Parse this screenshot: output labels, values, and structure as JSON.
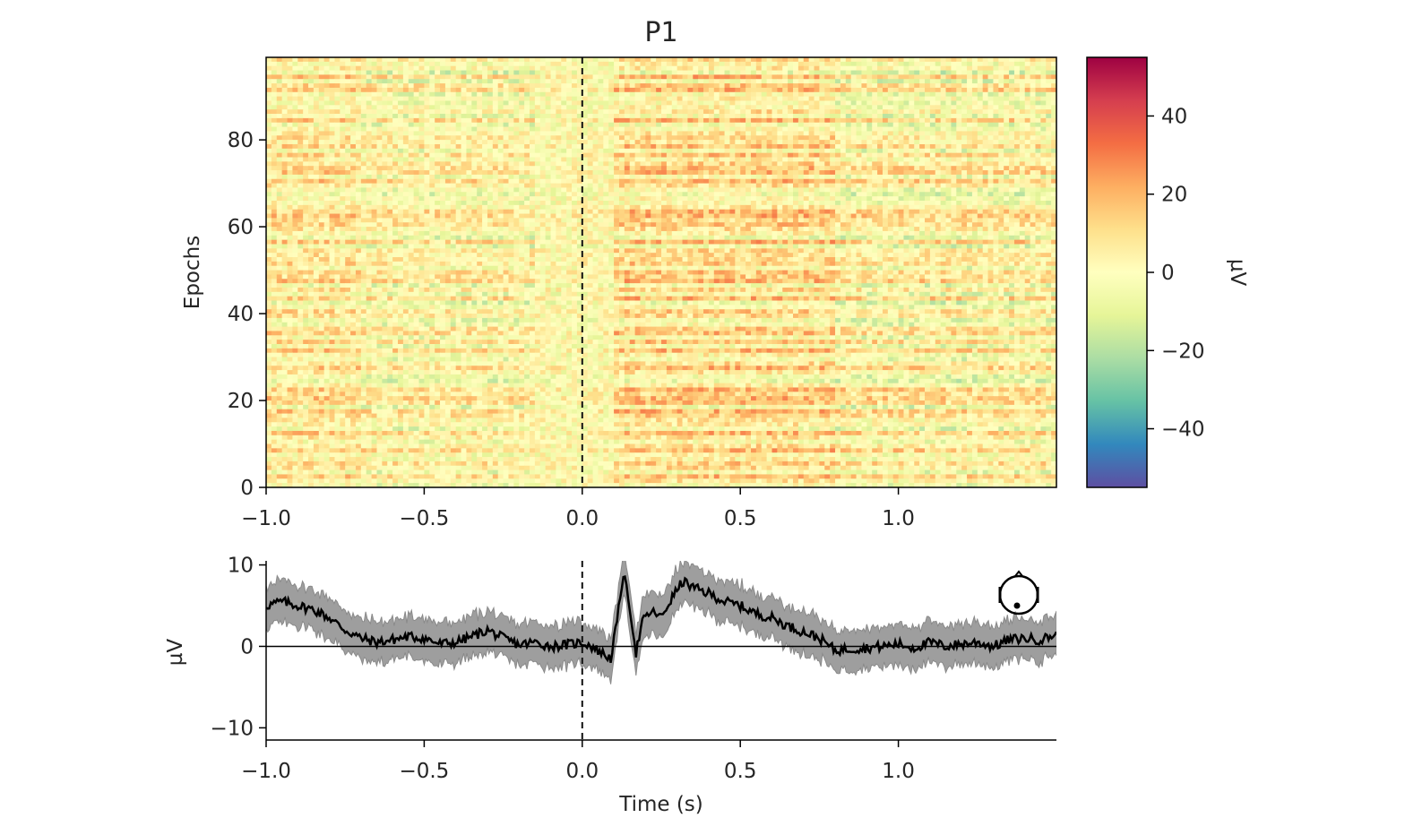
{
  "chart_data": [
    {
      "type": "heatmap",
      "title": "P1",
      "ylabel": "Epochs",
      "xlim": [
        -1.0,
        1.5
      ],
      "ylim": [
        0,
        99
      ],
      "x_ticks": [
        -1.0,
        -0.5,
        0.0,
        0.5,
        1.0
      ],
      "x_tick_labels": [
        "−1.0",
        "−0.5",
        "0.0",
        "0.5",
        "1.0"
      ],
      "y_ticks": [
        0,
        20,
        40,
        60,
        80
      ],
      "y_tick_labels": [
        "0",
        "20",
        "40",
        "60",
        "80"
      ],
      "n_epochs": 99,
      "time_marker": 0.0,
      "colorbar": {
        "label": "µV",
        "colormap": "Spectral_r",
        "range": [
          -55,
          55
        ],
        "ticks": [
          40,
          20,
          0,
          -20,
          -40
        ],
        "tick_labels": [
          "40",
          "20",
          "0",
          "−20",
          "−40"
        ]
      }
    },
    {
      "type": "line",
      "xlabel": "Time (s)",
      "ylabel": "µV",
      "xlim": [
        -1.0,
        1.5
      ],
      "ylim": [
        -11.5,
        10.5
      ],
      "x_ticks": [
        -1.0,
        -0.5,
        0.0,
        0.5,
        1.0
      ],
      "x_tick_labels": [
        "−1.0",
        "−0.5",
        "0.0",
        "0.5",
        "1.0"
      ],
      "y_ticks": [
        10,
        0,
        -10
      ],
      "y_tick_labels": [
        "10",
        "0",
        "−10"
      ],
      "time_marker": 0.0,
      "series": [
        {
          "x": [
            -1.0,
            -0.95,
            -0.9,
            -0.85,
            -0.8,
            -0.75,
            -0.7,
            -0.65,
            -0.6,
            -0.55,
            -0.5,
            -0.45,
            -0.4,
            -0.35,
            -0.3,
            -0.25,
            -0.2,
            -0.15,
            -0.1,
            -0.05,
            0.0,
            0.02,
            0.05,
            0.07,
            0.09,
            0.11,
            0.13,
            0.15,
            0.17,
            0.19,
            0.21,
            0.23,
            0.25,
            0.27,
            0.3,
            0.32,
            0.35,
            0.4,
            0.45,
            0.5,
            0.55,
            0.6,
            0.65,
            0.7,
            0.75,
            0.8,
            0.85,
            0.9,
            0.95,
            1.0,
            1.05,
            1.1,
            1.15,
            1.2,
            1.25,
            1.3,
            1.35,
            1.4,
            1.45,
            1.5
          ],
          "values": [
            5.0,
            5.5,
            5.0,
            4.5,
            3.5,
            2.0,
            1.0,
            0.5,
            0.8,
            1.2,
            1.0,
            0.3,
            0.5,
            1.2,
            2.0,
            1.0,
            0.2,
            0.5,
            0.0,
            0.2,
            0.5,
            0.2,
            -0.5,
            -1.0,
            -1.5,
            3.0,
            9.0,
            5.0,
            -0.8,
            3.0,
            4.0,
            4.2,
            3.5,
            5.0,
            7.0,
            8.0,
            7.2,
            6.5,
            5.5,
            5.0,
            4.0,
            3.5,
            2.5,
            1.8,
            1.0,
            -0.5,
            -0.3,
            -0.2,
            0.0,
            0.3,
            -0.2,
            0.5,
            0.0,
            0.3,
            0.5,
            0.0,
            0.8,
            1.0,
            0.8,
            1.5
          ],
          "ci_halfwidth": 2.5
        }
      ],
      "inset": "sensor-head-top-right"
    }
  ]
}
